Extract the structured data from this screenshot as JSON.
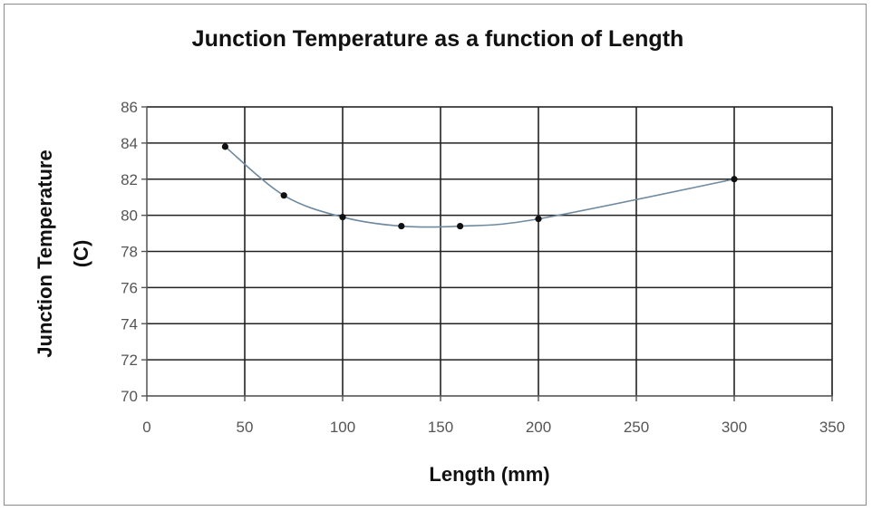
{
  "chart_data": {
    "type": "scatter",
    "title": "Junction Temperature as a function of Length",
    "xlabel": "Length (mm)",
    "ylabel_line1": "Junction Temperature",
    "ylabel_line2": "(C)",
    "xlim": [
      0,
      350
    ],
    "ylim": [
      70,
      86
    ],
    "x_ticks": [
      0,
      50,
      100,
      150,
      200,
      250,
      300,
      350
    ],
    "y_ticks": [
      70,
      72,
      74,
      76,
      78,
      80,
      82,
      84,
      86
    ],
    "grid": true,
    "legend": "none",
    "smoothed_line": true,
    "series": [
      {
        "points": [
          {
            "x": 40,
            "y": 83.8
          },
          {
            "x": 70,
            "y": 81.1
          },
          {
            "x": 100,
            "y": 79.9
          },
          {
            "x": 130,
            "y": 79.4
          },
          {
            "x": 160,
            "y": 79.4
          },
          {
            "x": 200,
            "y": 79.8
          },
          {
            "x": 300,
            "y": 82.0
          }
        ],
        "line_color": "#6f8aa0",
        "marker_color": "#111111"
      }
    ]
  }
}
